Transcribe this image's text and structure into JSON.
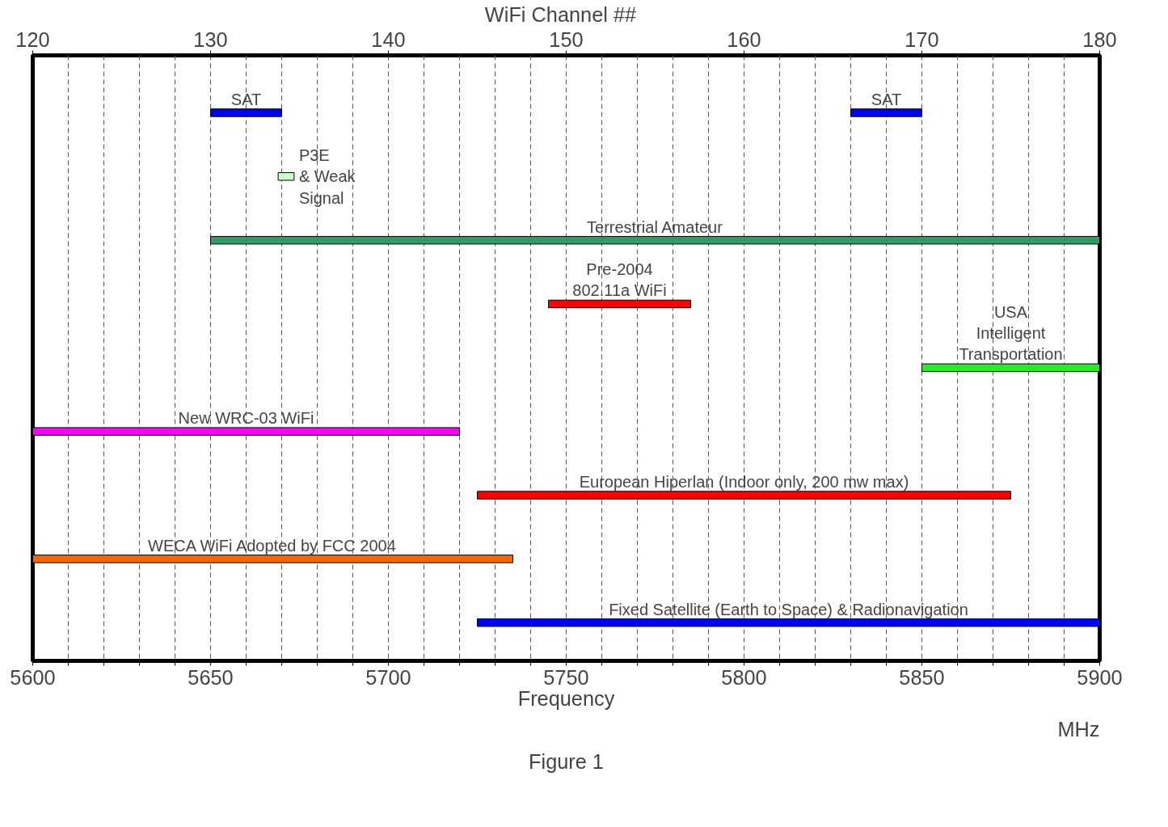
{
  "chart_data": {
    "type": "bar",
    "orientation": "horizontal",
    "categories": [
      null,
      null,
      null,
      null,
      null,
      null,
      null,
      null,
      null
    ],
    "series": [
      {
        "name": "SAT",
        "color": "#0000ff",
        "values": [
          20,
          null,
          null,
          null,
          null,
          null,
          null,
          null,
          null
        ],
        "base": [
          5650,
          null,
          null,
          null,
          null,
          null,
          null,
          null,
          null
        ]
      },
      {
        "name": "SAT",
        "color": "#0000ff",
        "values": [
          20,
          null,
          null,
          null,
          null,
          null,
          null,
          null,
          null
        ],
        "base": [
          5830,
          null,
          null,
          null,
          null,
          null,
          null,
          null,
          null
        ]
      },
      {
        "name": "P3E\n& Weak\nSignal",
        "color": "#ccffcc",
        "values": [
          null,
          4.5,
          null,
          null,
          null,
          null,
          null,
          null,
          null
        ],
        "base": [
          null,
          5669,
          null,
          null,
          null,
          null,
          null,
          null,
          null
        ]
      },
      {
        "name": "Terrestrial Amateur",
        "color": "#339966",
        "values": [
          null,
          null,
          250,
          null,
          null,
          null,
          null,
          null,
          null
        ],
        "base": [
          null,
          null,
          5650,
          null,
          null,
          null,
          null,
          null,
          null
        ]
      },
      {
        "name": "Pre-2004\n802.11a WiFi",
        "color": "#ff0000",
        "values": [
          null,
          null,
          null,
          40,
          null,
          null,
          null,
          null,
          null
        ],
        "base": [
          null,
          null,
          null,
          5745,
          null,
          null,
          null,
          null,
          null
        ]
      },
      {
        "name": "USA\nIntelligent\nTransportation",
        "color": "#22ee22",
        "values": [
          null,
          null,
          null,
          null,
          50,
          null,
          null,
          null,
          null
        ],
        "base": [
          null,
          null,
          null,
          null,
          5850,
          null,
          null,
          null,
          null
        ]
      },
      {
        "name": "New WRC-03 WiFi",
        "color": "#ff00ff",
        "values": [
          null,
          null,
          null,
          null,
          null,
          120,
          null,
          null,
          null
        ],
        "base": [
          null,
          null,
          null,
          null,
          null,
          5600,
          null,
          null,
          null
        ]
      },
      {
        "name": "European Hiperlan (Indoor only, 200 mw max)",
        "color": "#ff0000",
        "values": [
          null,
          null,
          null,
          null,
          null,
          null,
          150,
          null,
          null
        ],
        "base": [
          null,
          null,
          null,
          null,
          null,
          null,
          5725,
          null,
          null
        ]
      },
      {
        "name": "WECA WiFi Adopted by FCC 2004",
        "color": "#ff6600",
        "values": [
          null,
          null,
          null,
          null,
          null,
          null,
          null,
          135,
          null
        ],
        "base": [
          null,
          null,
          null,
          null,
          null,
          null,
          null,
          5600,
          null
        ]
      },
      {
        "name": "Fixed Satellite (Earth to Space) & Radionavigation",
        "color": "#0000ff",
        "values": [
          null,
          null,
          null,
          null,
          null,
          null,
          null,
          null,
          175
        ],
        "base": [
          null,
          null,
          null,
          null,
          null,
          null,
          null,
          null,
          5725
        ]
      }
    ],
    "xlim": [
      5600,
      5900
    ],
    "xticks": [
      5600,
      {
        "value": 5610,
        "label": null
      },
      {
        "value": 5620,
        "label": null
      },
      {
        "value": 5630,
        "label": null
      },
      {
        "value": 5640,
        "label": null
      },
      5650,
      {
        "value": 5660,
        "label": null
      },
      {
        "value": 5670,
        "label": null
      },
      {
        "value": 5680,
        "label": null
      },
      {
        "value": 5690,
        "label": null
      },
      5700,
      {
        "value": 5710,
        "label": null
      },
      {
        "value": 5720,
        "label": null
      },
      {
        "value": 5730,
        "label": null
      },
      {
        "value": 5740,
        "label": null
      },
      5750,
      {
        "value": 5760,
        "label": null
      },
      {
        "value": 5770,
        "label": null
      },
      {
        "value": 5780,
        "label": null
      },
      {
        "value": 5790,
        "label": null
      },
      5800,
      {
        "value": 5810,
        "label": null
      },
      {
        "value": 5820,
        "label": null
      },
      {
        "value": 5830,
        "label": null
      },
      {
        "value": 5840,
        "label": null
      },
      5850,
      {
        "value": 5860,
        "label": null
      },
      {
        "value": 5870,
        "label": null
      },
      {
        "value": 5880,
        "label": null
      },
      {
        "value": 5890,
        "label": null
      },
      5900
    ],
    "x2lim": [
      120,
      180
    ],
    "x2ticks": [
      120,
      130,
      140,
      150,
      160,
      170,
      180
    ],
    "x2label": "WiFi  Channel  ##",
    "xlabel": "Frequency",
    "annotations": [
      "MHz",
      "Figure 1"
    ],
    "grid": "x"
  }
}
